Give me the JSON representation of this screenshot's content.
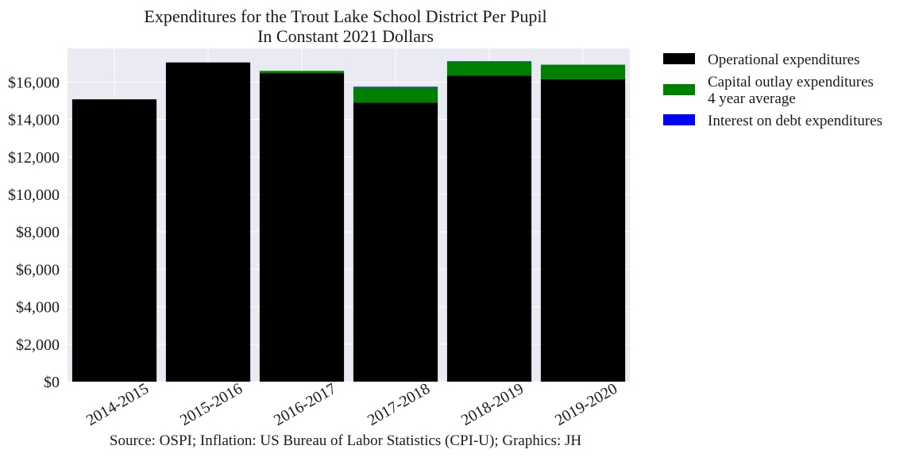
{
  "chart_data": {
    "type": "bar",
    "stacked": true,
    "title": "Expenditures for the Trout Lake School District Per Pupil",
    "subtitle": "In Constant 2021 Dollars",
    "source": "Source: OSPI; Inflation: US Bureau of Labor Statistics (CPI-U); Graphics: JH",
    "xlabel": "",
    "ylabel": "",
    "ylim": [
      0,
      17800
    ],
    "ytick_values": [
      0,
      2000,
      4000,
      6000,
      8000,
      10000,
      12000,
      14000,
      16000
    ],
    "ytick_labels": [
      "$0",
      "$2,000",
      "$4,000",
      "$6,000",
      "$8,000",
      "$10,000",
      "$12,000",
      "$14,000",
      "$16,000"
    ],
    "grid": true,
    "background": "#eaeaf2",
    "legend_position": "outside-right-top",
    "categories": [
      "2014-2015",
      "2015-2016",
      "2016-2017",
      "2017-2018",
      "2018-2019",
      "2019-2020"
    ],
    "series": [
      {
        "name": "Operational expenditures",
        "color": "#000000",
        "values": [
          15080,
          17050,
          16480,
          14910,
          16350,
          16150
        ]
      },
      {
        "name": "Capital outlay expenditures\n4 year average",
        "color": "#008000",
        "values": [
          0,
          0,
          120,
          800,
          730,
          780
        ]
      },
      {
        "name": "Interest on debt expenditures",
        "color": "#0000ff",
        "values": [
          0,
          0,
          0,
          40,
          30,
          0
        ]
      }
    ]
  }
}
